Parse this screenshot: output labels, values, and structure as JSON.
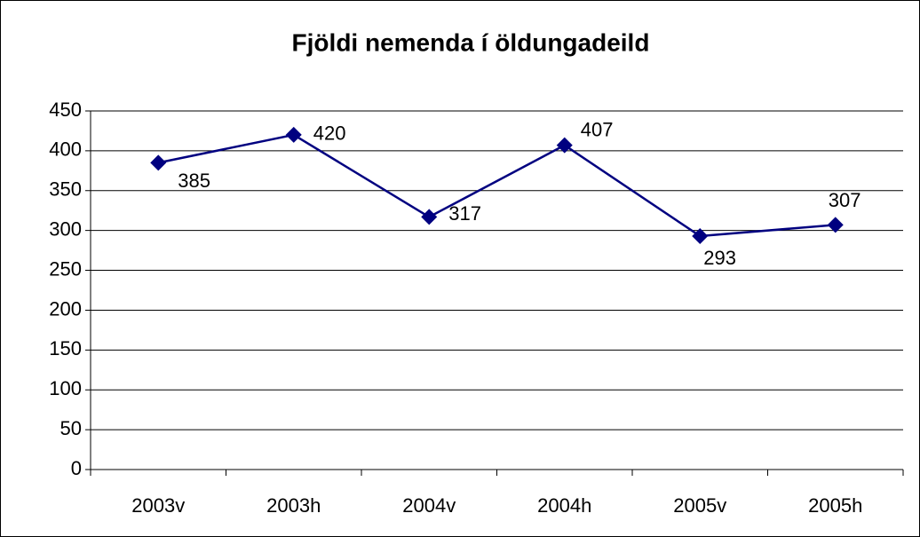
{
  "chart_data": {
    "type": "line",
    "title": "Fjöldi nemenda í öldungadeild",
    "categories": [
      "2003v",
      "2003h",
      "2004v",
      "2004h",
      "2005v",
      "2005h"
    ],
    "values": [
      385,
      420,
      317,
      407,
      293,
      307
    ],
    "color": "#000080",
    "ylim": [
      0,
      450
    ],
    "yticks": [
      0,
      50,
      100,
      150,
      200,
      250,
      300,
      350,
      400,
      450
    ],
    "grid": true
  }
}
